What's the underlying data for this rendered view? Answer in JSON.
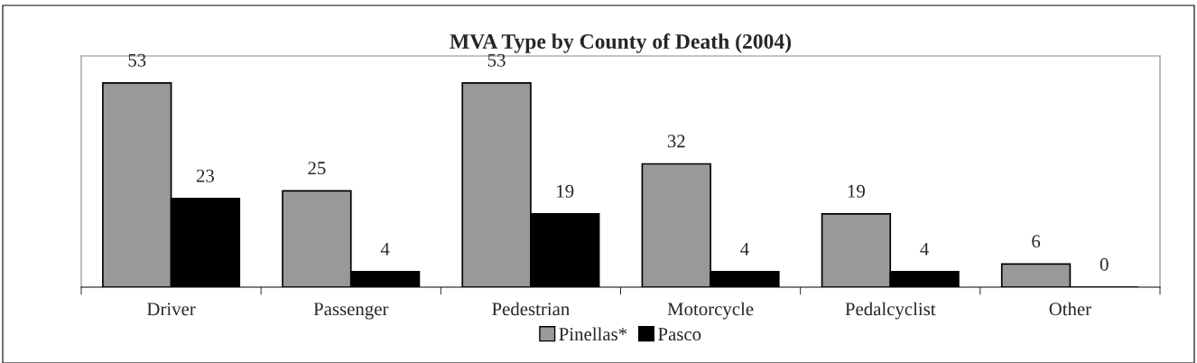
{
  "chart_data": {
    "type": "bar",
    "title": "MVA Type by County of Death (2004)",
    "categories": [
      "Driver",
      "Passenger",
      "Pedestrian",
      "Motorcycle",
      "Pedalcyclist",
      "Other"
    ],
    "series": [
      {
        "name": "Pinellas*",
        "color": "#999999",
        "values": [
          53,
          25,
          53,
          32,
          19,
          6
        ]
      },
      {
        "name": "Pasco",
        "color": "#000000",
        "values": [
          23,
          4,
          19,
          4,
          4,
          0
        ]
      }
    ],
    "ylim": [
      0,
      60
    ],
    "data_labels": true,
    "legend": "bottom",
    "grid": false,
    "tick_labels": "x"
  }
}
